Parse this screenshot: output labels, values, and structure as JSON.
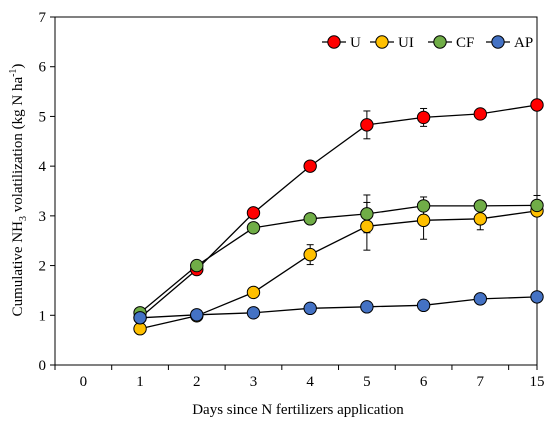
{
  "chart_data": {
    "type": "line",
    "xlabel": "Days since N fertilizers application",
    "ylabel_parts": {
      "before": "Cumulative NH",
      "sub": "3",
      "middle": " volatilization (kg N ha",
      "sup": "-1",
      "after": ")"
    },
    "categories": [
      "0",
      "1",
      "2",
      "3",
      "4",
      "5",
      "6",
      "7",
      "15"
    ],
    "ylim": [
      0,
      7
    ],
    "yticks": [
      "0",
      "1",
      "2",
      "3",
      "4",
      "5",
      "6",
      "7"
    ],
    "grid": false,
    "legend_position": "top-right",
    "series": [
      {
        "name": "U",
        "color": "#ff0000",
        "values": [
          null,
          0.95,
          1.92,
          3.06,
          4.0,
          4.83,
          4.98,
          5.05,
          5.23
        ],
        "errors": [
          null,
          0.02,
          0.05,
          0.05,
          0.05,
          0.28,
          0.18,
          0.05,
          0.05
        ]
      },
      {
        "name": "UI",
        "color": "#ffc000",
        "values": [
          null,
          0.73,
          0.99,
          1.46,
          2.22,
          2.79,
          2.91,
          2.94,
          3.1
        ],
        "errors": [
          null,
          0.02,
          0.02,
          0.05,
          0.2,
          0.48,
          0.38,
          0.22,
          0.08
        ]
      },
      {
        "name": "CF",
        "color": "#70ad47",
        "values": [
          null,
          1.05,
          2.0,
          2.76,
          2.94,
          3.04,
          3.2,
          3.2,
          3.21
        ],
        "errors": [
          null,
          0.02,
          0.03,
          0.05,
          0.05,
          0.38,
          0.18,
          0.05,
          0.2
        ]
      },
      {
        "name": "AP",
        "color": "#4472c4",
        "values": [
          null,
          0.95,
          1.01,
          1.05,
          1.14,
          1.17,
          1.2,
          1.33,
          1.37
        ],
        "errors": [
          null,
          0.02,
          0.02,
          0.02,
          0.03,
          0.03,
          0.03,
          0.05,
          0.05
        ]
      }
    ]
  }
}
